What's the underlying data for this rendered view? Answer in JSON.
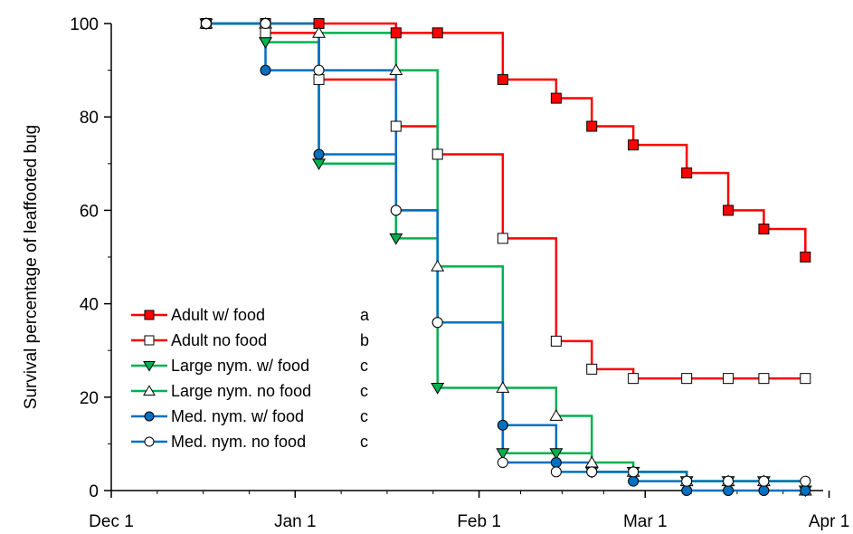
{
  "chart_data": {
    "type": "line",
    "title": "",
    "xlabel": "",
    "ylabel": "Survival percentage of leaffooted bug",
    "x_unit": "days since Dec 1",
    "xlim": [
      0,
      120
    ],
    "ylim": [
      0,
      100
    ],
    "x_ticks": [
      {
        "value": 0,
        "label": "Dec 1"
      },
      {
        "value": 31,
        "label": "Jan 1"
      },
      {
        "value": 62,
        "label": "Feb 1"
      },
      {
        "value": 90,
        "label": "Mar 1"
      },
      {
        "value": 121,
        "label": "Apr 1"
      }
    ],
    "y_ticks": [
      0,
      20,
      40,
      60,
      80,
      100
    ],
    "step": true,
    "grid": false,
    "legend": {
      "placement": "center-left"
    },
    "series": [
      {
        "name": "Adult w/ food",
        "letter": "a",
        "color": "#ff0000",
        "marker": "square",
        "filled": true,
        "x": [
          16,
          26,
          35,
          48,
          55,
          66,
          75,
          81,
          88,
          97,
          104,
          110,
          117
        ],
        "y": [
          100,
          100,
          100,
          98,
          98,
          88,
          84,
          78,
          74,
          68,
          60,
          56,
          50
        ]
      },
      {
        "name": "Adult no food",
        "letter": "b",
        "color": "#ff0000",
        "marker": "square",
        "filled": false,
        "x": [
          16,
          26,
          35,
          48,
          55,
          66,
          75,
          81,
          88,
          97,
          104,
          110,
          117
        ],
        "y": [
          100,
          98,
          88,
          78,
          72,
          54,
          32,
          26,
          24,
          24,
          24,
          24,
          24
        ]
      },
      {
        "name": "Large nym. w/ food",
        "letter": "c",
        "color": "#00b050",
        "marker": "triangle-down",
        "filled": true,
        "x": [
          16,
          26,
          35,
          48,
          55,
          66,
          75,
          81,
          88,
          97,
          104,
          110,
          117
        ],
        "y": [
          100,
          96,
          70,
          54,
          22,
          8,
          8,
          4,
          4,
          2,
          2,
          2,
          0
        ]
      },
      {
        "name": "Large nym. no food",
        "letter": "c",
        "color": "#00b050",
        "marker": "triangle-up",
        "filled": false,
        "x": [
          16,
          26,
          35,
          48,
          55,
          66,
          75,
          81,
          88,
          97,
          104,
          110,
          117
        ],
        "y": [
          100,
          100,
          98,
          90,
          48,
          22,
          16,
          6,
          4,
          2,
          2,
          2,
          0
        ]
      },
      {
        "name": "Med. nym. w/ food",
        "letter": "c",
        "color": "#0070c0",
        "marker": "circle",
        "filled": true,
        "x": [
          16,
          26,
          35,
          48,
          55,
          66,
          75,
          81,
          88,
          97,
          104,
          110,
          117
        ],
        "y": [
          100,
          90,
          72,
          60,
          36,
          14,
          6,
          4,
          2,
          0,
          0,
          0,
          0
        ]
      },
      {
        "name": "Med. nym. no food",
        "letter": "c",
        "color": "#0070c0",
        "marker": "circle",
        "filled": false,
        "x": [
          16,
          26,
          35,
          48,
          55,
          66,
          75,
          81,
          88,
          97,
          104,
          110,
          117
        ],
        "y": [
          100,
          100,
          90,
          60,
          36,
          6,
          4,
          4,
          4,
          2,
          2,
          2,
          2
        ]
      }
    ]
  }
}
